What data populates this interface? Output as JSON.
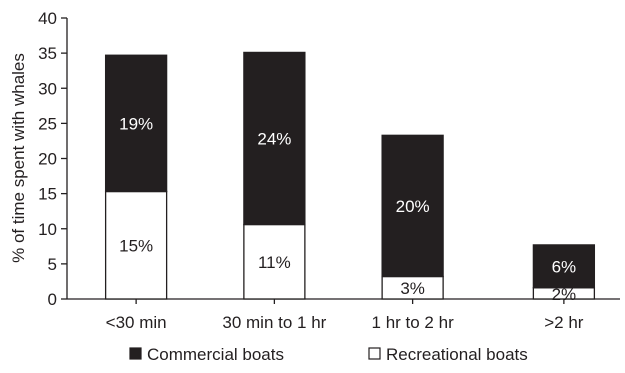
{
  "chart_data": {
    "type": "bar",
    "stacked": true,
    "title": "",
    "xlabel": "",
    "ylabel": "% of time spent with whales",
    "ylim": [
      0,
      40
    ],
    "yticks": [
      "0",
      "5",
      "10",
      "15",
      "20",
      "25",
      "30",
      "35",
      "40"
    ],
    "categories": [
      "<30 min",
      "30 min to 1 hr",
      "1 hr to 2 hr",
      ">2 hr"
    ],
    "series": [
      {
        "name": "Recreational boats",
        "color": "#ffffff",
        "values": [
          15.3,
          10.6,
          3.2,
          1.6
        ],
        "labels": [
          "15%",
          "11%",
          "3%",
          "2%"
        ]
      },
      {
        "name": "Commercial boats",
        "color": "#231f20",
        "values": [
          19.4,
          24.5,
          20.1,
          6.1
        ],
        "labels": [
          "19%",
          "24%",
          "20%",
          "6%"
        ]
      }
    ],
    "legend": {
      "position": "bottom",
      "order": [
        "Commercial boats",
        "Recreational boats"
      ]
    },
    "grid": false
  }
}
